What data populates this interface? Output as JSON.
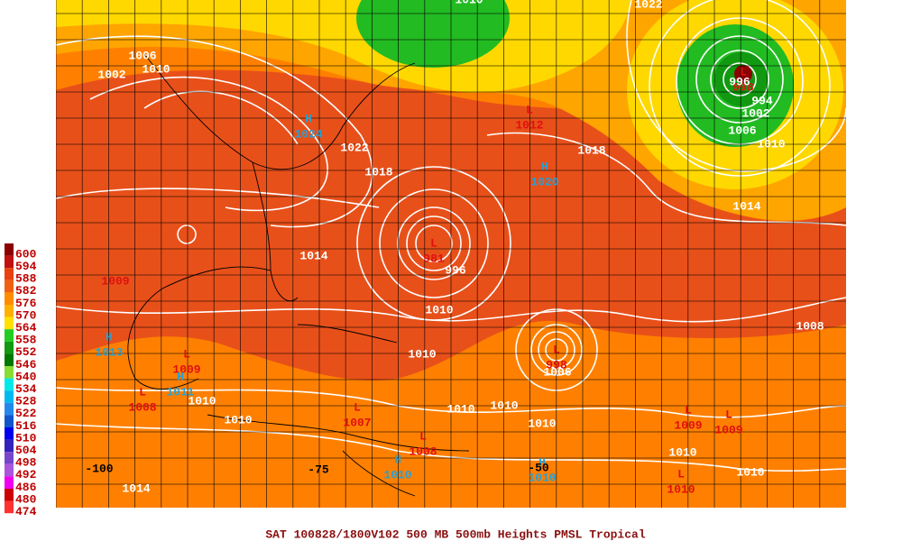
{
  "title": "SAT 100828/1800V102  500 MB 500mb Heights PMSL Tropical",
  "legend": {
    "labels": [
      "600",
      "594",
      "588",
      "582",
      "576",
      "570",
      "564",
      "558",
      "552",
      "546",
      "540",
      "534",
      "528",
      "522",
      "516",
      "510",
      "504",
      "498",
      "492",
      "486",
      "480",
      "474"
    ],
    "colors": [
      "#8b0000",
      "#c01010",
      "#e84010",
      "#f06010",
      "#ff8c00",
      "#ffb000",
      "#ffe000",
      "#22cc22",
      "#119911",
      "#007700",
      "#88dd33",
      "#00e8e8",
      "#00b8f0",
      "#2288ee",
      "#1155cc",
      "#0000ee",
      "#3322bb",
      "#7744cc",
      "#aa55dd",
      "#ee00ee",
      "#cc0000",
      "#ff3030"
    ]
  },
  "centers": [
    {
      "letter": "H",
      "value": "1024"
    },
    {
      "letter": "L",
      "value": "1012"
    },
    {
      "letter": "H",
      "value": "1020"
    },
    {
      "letter": "L",
      "value": "981"
    },
    {
      "letter": "L",
      "value": "998"
    },
    {
      "letter": "L",
      "value": "998"
    },
    {
      "letter": "H",
      "value": "1013"
    },
    {
      "letter": "L",
      "value": "1009"
    },
    {
      "letter": "H",
      "value": "1011"
    },
    {
      "letter": "L",
      "value": "1008"
    },
    {
      "letter": "L",
      "value": "1007"
    },
    {
      "letter": "L",
      "value": "1008"
    },
    {
      "letter": "H",
      "value": "1010"
    },
    {
      "letter": "H",
      "value": "1010"
    },
    {
      "letter": "L",
      "value": "1009"
    },
    {
      "letter": "L",
      "value": "1009"
    },
    {
      "letter": "L",
      "value": "1010"
    }
  ],
  "red_labels": [
    "1009"
  ],
  "isobar_labels": [
    "1002",
    "1006",
    "1010",
    "1022",
    "1018",
    "1014",
    "1010",
    "1010",
    "1010",
    "1010",
    "1010",
    "1010",
    "1010",
    "1006",
    "1018",
    "1014",
    "1010",
    "1006",
    "1002",
    "994",
    "996",
    "1010",
    "1010",
    "1008",
    "1014",
    "1010",
    "1022",
    "996"
  ],
  "longitudes": [
    "-100",
    "-75",
    "-50"
  ]
}
